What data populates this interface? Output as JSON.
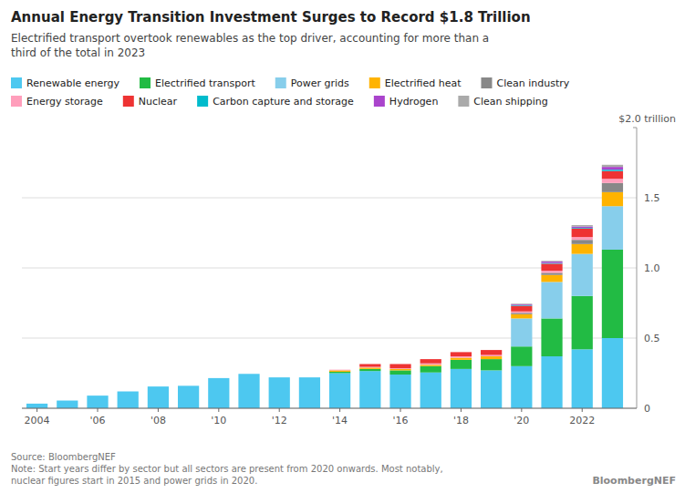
{
  "chart_data": {
    "type": "bar",
    "stacked": true,
    "title": "Annual Energy Transition Investment Surges to Record $1.8 Trillion",
    "subtitle": "Electrified transport overtook renewables as the top driver, accounting for more than a\nthird of the total in 2023",
    "ylabel": "$2.0 trillion",
    "annotations": [
      "Source: BloombergNEF\nNote: Start years differ by sector but all sectors are present from 2020 onwards. Most notably,\nnuclear figures start in 2015 and power grids in 2020.",
      "BloombergNEF"
    ],
    "x": [
      2004,
      2005,
      2006,
      2007,
      2008,
      2009,
      2010,
      2011,
      2012,
      2013,
      2014,
      2015,
      2016,
      2017,
      2018,
      2019,
      2020,
      2021,
      2022,
      2023
    ],
    "xlim": [
      2003.5,
      2023.8
    ],
    "xticks": [
      2004,
      {
        "value": 2006,
        "label": "'06"
      },
      {
        "value": 2008,
        "label": "'08"
      },
      {
        "value": 2010,
        "label": "'10"
      },
      {
        "value": 2012,
        "label": "'12"
      },
      {
        "value": 2014,
        "label": "'14"
      },
      {
        "value": 2016,
        "label": "'16"
      },
      {
        "value": 2018,
        "label": "'18"
      },
      {
        "value": 2020,
        "label": "'20"
      },
      2022
    ],
    "ylim": [
      0,
      2.0
    ],
    "yticks": [
      0,
      0.5,
      {
        "value": 1.0,
        "label": "1.0"
      },
      1.5
    ],
    "grid": true,
    "legend": "top",
    "series": [
      {
        "name": "Renewable energy",
        "color": "#4DC8F0",
        "values": [
          0.033,
          0.055,
          0.09,
          0.12,
          0.155,
          0.16,
          0.215,
          0.245,
          0.22,
          0.22,
          0.25,
          0.265,
          0.24,
          0.255,
          0.28,
          0.27,
          0.3,
          0.37,
          0.42,
          0.5
        ]
      },
      {
        "name": "Electrified transport",
        "color": "#22BB44",
        "values": [
          0,
          0,
          0,
          0,
          0,
          0,
          0,
          0,
          0,
          0,
          0.01,
          0.015,
          0.03,
          0.045,
          0.065,
          0.08,
          0.14,
          0.27,
          0.38,
          0.63
        ]
      },
      {
        "name": "Power grids",
        "color": "#87CEEB",
        "values": [
          0,
          0,
          0,
          0,
          0,
          0,
          0,
          0,
          0,
          0,
          0,
          0,
          0,
          0,
          0,
          0,
          0.2,
          0.26,
          0.3,
          0.31
        ]
      },
      {
        "name": "Electrified heat",
        "color": "#FFB300",
        "values": [
          0,
          0,
          0,
          0,
          0,
          0,
          0,
          0,
          0,
          0,
          0.01,
          0.01,
          0.01,
          0.01,
          0.015,
          0.02,
          0.03,
          0.05,
          0.07,
          0.1
        ]
      },
      {
        "name": "Clean industry",
        "color": "#888888",
        "values": [
          0,
          0,
          0,
          0,
          0,
          0,
          0,
          0,
          0,
          0,
          0,
          0,
          0,
          0,
          0,
          0,
          0.01,
          0.015,
          0.03,
          0.065
        ]
      },
      {
        "name": "Energy storage",
        "color": "#FF9EBB",
        "values": [
          0,
          0,
          0,
          0,
          0,
          0,
          0,
          0,
          0,
          0,
          0.005,
          0.005,
          0.005,
          0.01,
          0.01,
          0.01,
          0.01,
          0.015,
          0.02,
          0.03
        ]
      },
      {
        "name": "Nuclear",
        "color": "#EE3333",
        "values": [
          0,
          0,
          0,
          0,
          0,
          0,
          0,
          0,
          0,
          0,
          0,
          0.02,
          0.03,
          0.03,
          0.03,
          0.035,
          0.04,
          0.05,
          0.06,
          0.055
        ]
      },
      {
        "name": "Carbon capture and storage",
        "color": "#00BBCC",
        "values": [
          0,
          0,
          0,
          0,
          0,
          0,
          0,
          0,
          0,
          0,
          0,
          0,
          0,
          0,
          0,
          0,
          0.005,
          0.005,
          0.005,
          0.01
        ]
      },
      {
        "name": "Hydrogen",
        "color": "#AA44CC",
        "values": [
          0,
          0,
          0,
          0,
          0,
          0,
          0,
          0,
          0,
          0,
          0,
          0,
          0,
          0,
          0,
          0,
          0.005,
          0.01,
          0.01,
          0.02
        ]
      },
      {
        "name": "Clean shipping",
        "color": "#AAAAAA",
        "values": [
          0,
          0,
          0,
          0,
          0,
          0,
          0,
          0,
          0,
          0,
          0,
          0,
          0,
          0,
          0,
          0,
          0.005,
          0.005,
          0.01,
          0.015
        ]
      }
    ]
  }
}
